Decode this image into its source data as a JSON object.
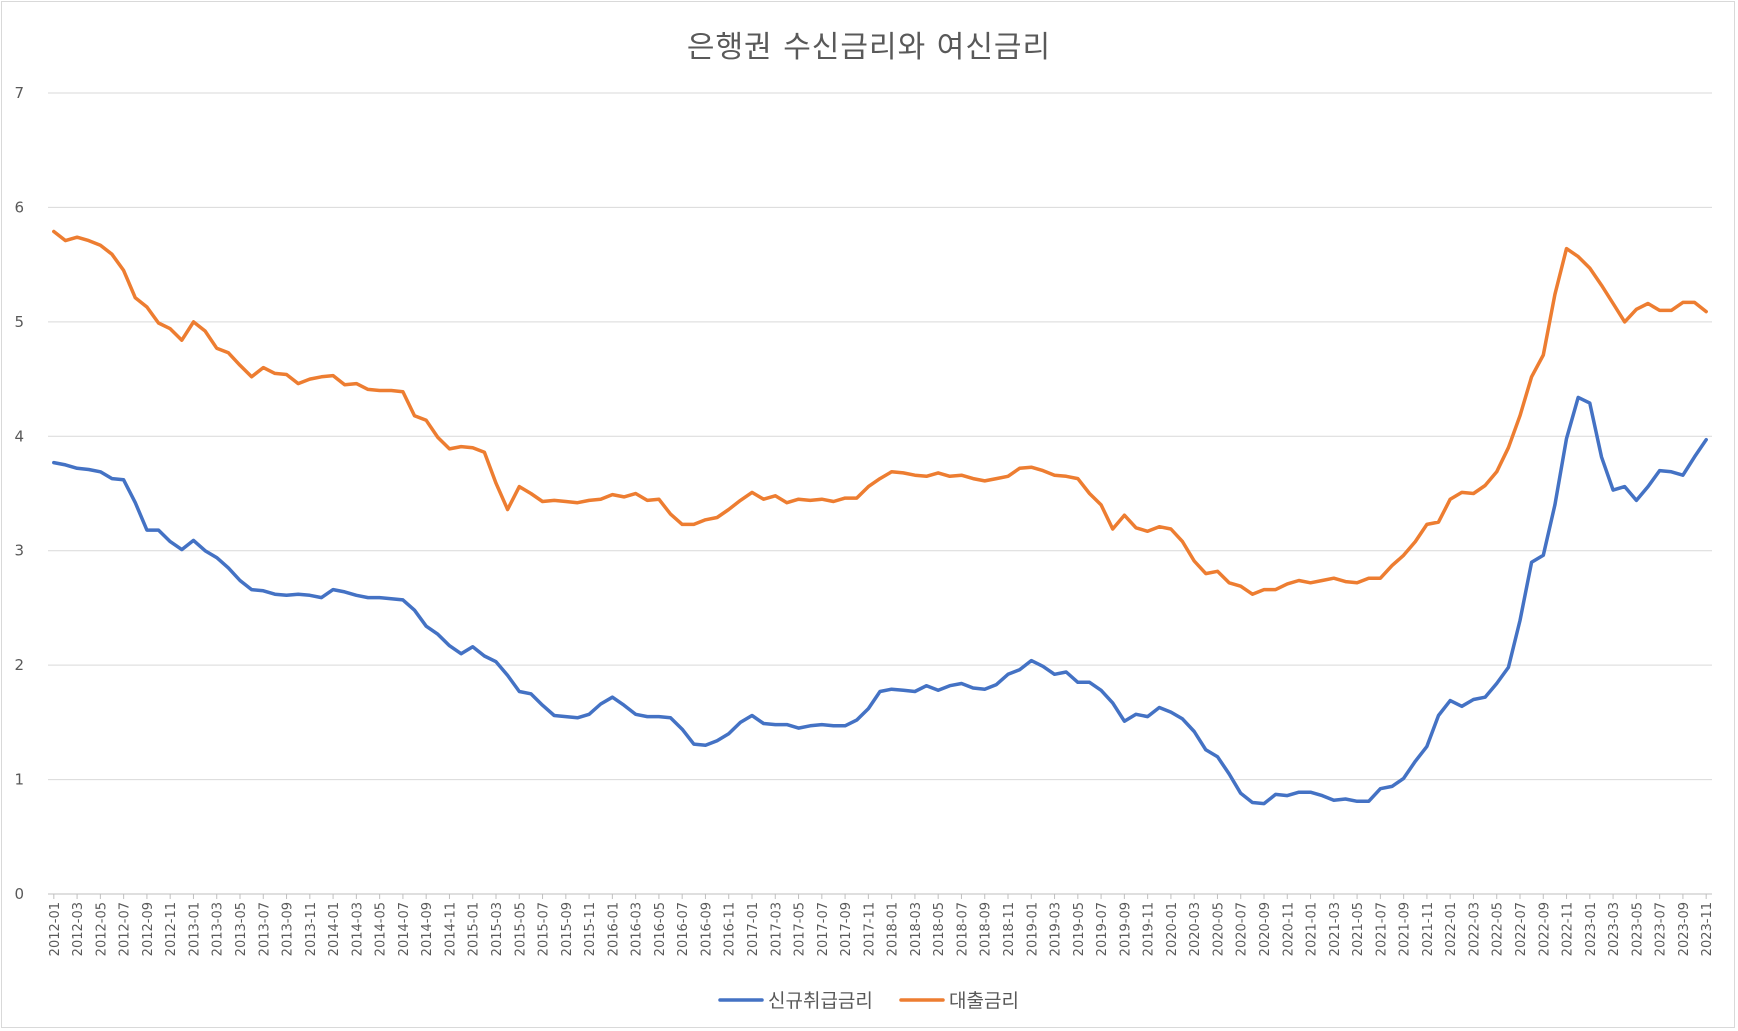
{
  "chart_data": {
    "type": "line",
    "title": "은행권 수신금리와 여신금리",
    "xlabel": "",
    "ylabel": "",
    "ylim": [
      0,
      7
    ],
    "yticks": [
      "0",
      "1",
      "2",
      "3",
      "4",
      "5",
      "6",
      "7"
    ],
    "grid": true,
    "legend": "bottom",
    "x": [
      "2012-01",
      "2012-02",
      "2012-03",
      "2012-04",
      "2012-05",
      "2012-06",
      "2012-07",
      "2012-08",
      "2012-09",
      "2012-10",
      "2012-11",
      "2012-12",
      "2013-01",
      "2013-02",
      "2013-03",
      "2013-04",
      "2013-05",
      "2013-06",
      "2013-07",
      "2013-08",
      "2013-09",
      "2013-10",
      "2013-11",
      "2013-12",
      "2014-01",
      "2014-02",
      "2014-03",
      "2014-04",
      "2014-05",
      "2014-06",
      "2014-07",
      "2014-08",
      "2014-09",
      "2014-10",
      "2014-11",
      "2014-12",
      "2015-01",
      "2015-02",
      "2015-03",
      "2015-04",
      "2015-05",
      "2015-06",
      "2015-07",
      "2015-08",
      "2015-09",
      "2015-10",
      "2015-11",
      "2015-12",
      "2016-01",
      "2016-02",
      "2016-03",
      "2016-04",
      "2016-05",
      "2016-06",
      "2016-07",
      "2016-08",
      "2016-09",
      "2016-10",
      "2016-11",
      "2016-12",
      "2017-01",
      "2017-02",
      "2017-03",
      "2017-04",
      "2017-05",
      "2017-06",
      "2017-07",
      "2017-08",
      "2017-09",
      "2017-10",
      "2017-11",
      "2017-12",
      "2018-01",
      "2018-02",
      "2018-03",
      "2018-04",
      "2018-05",
      "2018-06",
      "2018-07",
      "2018-08",
      "2018-09",
      "2018-10",
      "2018-11",
      "2018-12",
      "2019-01",
      "2019-02",
      "2019-03",
      "2019-04",
      "2019-05",
      "2019-06",
      "2019-07",
      "2019-08",
      "2019-09",
      "2019-10",
      "2019-11",
      "2019-12",
      "2020-01",
      "2020-02",
      "2020-03",
      "2020-04",
      "2020-05",
      "2020-06",
      "2020-07",
      "2020-08",
      "2020-09",
      "2020-10",
      "2020-11",
      "2020-12",
      "2021-01",
      "2021-02",
      "2021-03",
      "2021-04",
      "2021-05",
      "2021-06",
      "2021-07",
      "2021-08",
      "2021-09",
      "2021-10",
      "2021-11",
      "2021-12",
      "2022-01",
      "2022-02",
      "2022-03",
      "2022-04",
      "2022-05",
      "2022-06",
      "2022-07",
      "2022-08",
      "2022-09",
      "2022-10",
      "2022-11",
      "2022-12",
      "2023-01",
      "2023-02",
      "2023-03",
      "2023-04",
      "2023-05",
      "2023-06",
      "2023-07",
      "2023-08",
      "2023-09",
      "2023-10",
      "2023-11"
    ],
    "series": [
      {
        "name": "신규취급금리",
        "color": "#4472c4",
        "values": [
          3.77,
          3.75,
          3.72,
          3.71,
          3.69,
          3.63,
          3.62,
          3.42,
          3.18,
          3.18,
          3.08,
          3.01,
          3.09,
          3.0,
          2.94,
          2.85,
          2.74,
          2.66,
          2.65,
          2.62,
          2.61,
          2.62,
          2.61,
          2.59,
          2.66,
          2.64,
          2.61,
          2.59,
          2.59,
          2.58,
          2.57,
          2.48,
          2.34,
          2.27,
          2.17,
          2.1,
          2.16,
          2.08,
          2.03,
          1.91,
          1.77,
          1.75,
          1.65,
          1.56,
          1.55,
          1.54,
          1.57,
          1.66,
          1.72,
          1.65,
          1.57,
          1.55,
          1.55,
          1.54,
          1.44,
          1.31,
          1.3,
          1.34,
          1.4,
          1.5,
          1.56,
          1.49,
          1.48,
          1.48,
          1.45,
          1.47,
          1.48,
          1.47,
          1.47,
          1.52,
          1.62,
          1.77,
          1.79,
          1.78,
          1.77,
          1.82,
          1.78,
          1.82,
          1.84,
          1.8,
          1.79,
          1.83,
          1.92,
          1.96,
          2.04,
          1.99,
          1.92,
          1.94,
          1.85,
          1.85,
          1.78,
          1.67,
          1.51,
          1.57,
          1.55,
          1.63,
          1.59,
          1.53,
          1.42,
          1.26,
          1.2,
          1.05,
          0.88,
          0.8,
          0.79,
          0.87,
          0.86,
          0.89,
          0.89,
          0.86,
          0.82,
          0.83,
          0.81,
          0.81,
          0.92,
          0.94,
          1.01,
          1.16,
          1.29,
          1.56,
          1.69,
          1.64,
          1.7,
          1.72,
          1.84,
          1.98,
          2.39,
          2.9,
          2.96,
          3.4,
          3.98,
          4.34,
          4.29,
          3.82,
          3.53,
          3.56,
          3.44,
          3.56,
          3.7,
          3.69,
          3.66,
          3.82,
          3.97
        ]
      },
      {
        "name": "대출금리",
        "color": "#ed7d31",
        "values": [
          5.79,
          5.71,
          5.74,
          5.71,
          5.67,
          5.59,
          5.45,
          5.21,
          5.13,
          4.99,
          4.94,
          4.84,
          5.0,
          4.92,
          4.77,
          4.73,
          4.62,
          4.52,
          4.6,
          4.55,
          4.54,
          4.46,
          4.5,
          4.52,
          4.53,
          4.45,
          4.46,
          4.41,
          4.4,
          4.4,
          4.39,
          4.18,
          4.14,
          3.99,
          3.89,
          3.91,
          3.9,
          3.86,
          3.59,
          3.36,
          3.56,
          3.5,
          3.43,
          3.44,
          3.43,
          3.42,
          3.44,
          3.45,
          3.49,
          3.47,
          3.5,
          3.44,
          3.45,
          3.32,
          3.23,
          3.23,
          3.27,
          3.29,
          3.36,
          3.44,
          3.51,
          3.45,
          3.48,
          3.42,
          3.45,
          3.44,
          3.45,
          3.43,
          3.46,
          3.46,
          3.56,
          3.63,
          3.69,
          3.68,
          3.66,
          3.65,
          3.68,
          3.65,
          3.66,
          3.63,
          3.61,
          3.63,
          3.65,
          3.72,
          3.73,
          3.7,
          3.66,
          3.65,
          3.63,
          3.5,
          3.4,
          3.19,
          3.31,
          3.2,
          3.17,
          3.21,
          3.19,
          3.08,
          2.91,
          2.8,
          2.82,
          2.72,
          2.69,
          2.62,
          2.66,
          2.66,
          2.71,
          2.74,
          2.72,
          2.74,
          2.76,
          2.73,
          2.72,
          2.76,
          2.76,
          2.87,
          2.96,
          3.08,
          3.23,
          3.25,
          3.45,
          3.51,
          3.5,
          3.57,
          3.69,
          3.9,
          4.18,
          4.52,
          4.71,
          5.24,
          5.64,
          5.57,
          5.47,
          5.32,
          5.16,
          5.0,
          5.11,
          5.16,
          5.1,
          5.1,
          5.17,
          5.17,
          5.09
        ]
      }
    ]
  }
}
